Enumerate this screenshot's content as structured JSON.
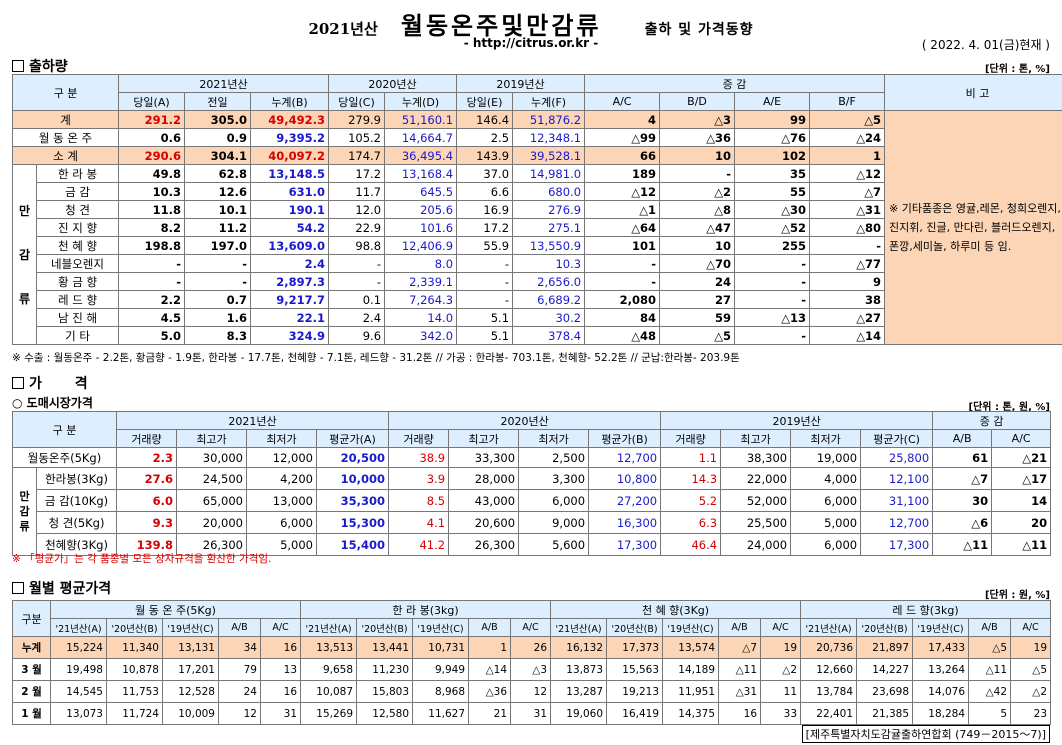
{
  "header": {
    "year": "2021년산",
    "title": "월동온주및만감류",
    "subtitle": "출하 및 가격동향",
    "url": "- http://citrus.or.kr -",
    "as_of": "( 2022. 4. 01(금)현재 )"
  },
  "shipment": {
    "section_title": "출하량",
    "unit": "[단위 : 톤, %]",
    "col_gubun": "구 분",
    "col_2021": "2021년산",
    "col_2020": "2020년산",
    "col_2019": "2019년산",
    "col_change": "증 감",
    "col_remark": "비 고",
    "sub_headers": [
      "당일(A)",
      "전일",
      "누계(B)",
      "당일(C)",
      "누계(D)",
      "당일(E)",
      "누계(F)",
      "A/C",
      "B/D",
      "A/E",
      "B/F"
    ],
    "rows": [
      {
        "label": "계",
        "cells": [
          "291.2",
          "305.0",
          "49,492.3",
          "279.9",
          "51,160.1",
          "146.4",
          "51,876.2",
          "4",
          "△3",
          "99",
          "△5"
        ]
      },
      {
        "label": "월 동 온 주",
        "cells": [
          "0.6",
          "0.9",
          "9,395.2",
          "105.2",
          "14,664.7",
          "2.5",
          "12,348.1",
          "△99",
          "△36",
          "△76",
          "△24"
        ]
      },
      {
        "label": "소 계",
        "cells": [
          "290.6",
          "304.1",
          "40,097.2",
          "174.7",
          "36,495.4",
          "143.9",
          "39,528.1",
          "66",
          "10",
          "102",
          "1"
        ]
      }
    ],
    "group_label": "만 감 류",
    "mangam_rows": [
      {
        "label": "한 라 봉",
        "cells": [
          "49.8",
          "62.8",
          "13,148.5",
          "17.2",
          "13,168.4",
          "37.0",
          "14,981.0",
          "189",
          "-",
          "35",
          "△12"
        ]
      },
      {
        "label": "금 감",
        "cells": [
          "10.3",
          "12.6",
          "631.0",
          "11.7",
          "645.5",
          "6.6",
          "680.0",
          "△12",
          "△2",
          "55",
          "△7"
        ]
      },
      {
        "label": "청 견",
        "cells": [
          "11.8",
          "10.1",
          "190.1",
          "12.0",
          "205.6",
          "16.9",
          "276.9",
          "△1",
          "△8",
          "△30",
          "△31"
        ]
      },
      {
        "label": "진 지 향",
        "cells": [
          "8.2",
          "11.2",
          "54.2",
          "22.9",
          "101.6",
          "17.2",
          "275.1",
          "△64",
          "△47",
          "△52",
          "△80"
        ]
      },
      {
        "label": "천 혜 향",
        "cells": [
          "198.8",
          "197.0",
          "13,609.0",
          "98.8",
          "12,406.9",
          "55.9",
          "13,550.9",
          "101",
          "10",
          "255",
          "-"
        ]
      },
      {
        "label": "네블오렌지",
        "cells": [
          "-",
          "-",
          "2.4",
          "-",
          "8.0",
          "-",
          "10.3",
          "-",
          "△70",
          "-",
          "△77"
        ]
      },
      {
        "label": "황 금 향",
        "cells": [
          "-",
          "-",
          "2,897.3",
          "-",
          "2,339.1",
          "-",
          "2,656.0",
          "-",
          "24",
          "-",
          "9"
        ]
      },
      {
        "label": "레 드 향",
        "cells": [
          "2.2",
          "0.7",
          "9,217.7",
          "0.1",
          "7,264.3",
          "-",
          "6,689.2",
          "2,080",
          "27",
          "-",
          "38"
        ]
      },
      {
        "label": "남 진 해",
        "cells": [
          "4.5",
          "1.6",
          "22.1",
          "2.4",
          "14.0",
          "5.1",
          "30.2",
          "84",
          "59",
          "△13",
          "△27"
        ]
      },
      {
        "label": "기 타",
        "cells": [
          "5.0",
          "8.3",
          "324.9",
          "9.6",
          "342.0",
          "5.1",
          "378.4",
          "△48",
          "△5",
          "-",
          "△14"
        ]
      }
    ],
    "remark": "※ 기타품종은 영귤,레몬, 청희오렌지, 진지휘, 진글, 만다린, 블러드오렌지, 폰깡,세미놀, 하루미 등 임.",
    "note": "※ 수출 : 월동온주 - 2.2톤, 황금향 - 1.9톤, 한라봉 - 17.7톤, 천혜향 - 7.1톤, 레드향 - 31.2톤 // 가공 : 한라봉- 703.1톤, 천혜향- 52.2톤 // 군납:한라봉- 203.9톤"
  },
  "price": {
    "section_title": "가 격",
    "sub_title": "○ 도매시장가격",
    "unit": "[단위 : 톤, 원, %]",
    "col_gubun": "구 분",
    "col_2021": "2021년산",
    "col_2020": "2020년산",
    "col_2019": "2019년산",
    "col_change": "증 감",
    "sub_headers": [
      "거래량",
      "최고가",
      "최저가",
      "평균가(A)",
      "거래량",
      "최고가",
      "최저가",
      "평균가(B)",
      "거래량",
      "최고가",
      "최저가",
      "평균가(C)",
      "A/B",
      "A/C"
    ],
    "first_row": {
      "label": "월동온주(5Kg)",
      "cells": [
        "2.3",
        "30,000",
        "12,000",
        "20,500",
        "38.9",
        "33,300",
        "2,500",
        "12,700",
        "1.1",
        "38,300",
        "19,000",
        "25,800",
        "61",
        "△21"
      ]
    },
    "group_label": "만 감 류",
    "rows": [
      {
        "label": "한라봉(3Kg)",
        "cells": [
          "27.6",
          "24,500",
          "4,200",
          "10,000",
          "3.9",
          "28,000",
          "3,300",
          "10,800",
          "14.3",
          "22,000",
          "4,000",
          "12,100",
          "△7",
          "△17"
        ]
      },
      {
        "label": "금 감(10Kg)",
        "cells": [
          "6.0",
          "65,000",
          "13,000",
          "35,300",
          "8.5",
          "43,000",
          "6,000",
          "27,200",
          "5.2",
          "52,000",
          "6,000",
          "31,100",
          "30",
          "14"
        ]
      },
      {
        "label": "청 견(5Kg)",
        "cells": [
          "9.3",
          "20,000",
          "6,000",
          "15,300",
          "4.1",
          "20,600",
          "9,000",
          "16,300",
          "6.3",
          "25,500",
          "5,000",
          "12,700",
          "△6",
          "20"
        ]
      },
      {
        "label": "천혜향(3Kg)",
        "cells": [
          "139.8",
          "26,300",
          "5,000",
          "15,400",
          "41.2",
          "26,300",
          "5,600",
          "17,300",
          "46.4",
          "24,000",
          "6,000",
          "17,300",
          "△11",
          "△11"
        ]
      }
    ],
    "note": "※ 「평균가」는 각 품종별 모든 상자규격을 환산한 가격임."
  },
  "monthly": {
    "section_title": "월별 평균가격",
    "unit": "[단위 : 원, %]",
    "col_gubun": "구분",
    "groups": [
      "월 동 온 주(5Kg)",
      "한 라 봉(3kg)",
      "천 혜 향(3Kg)",
      "레 드 향(3kg)"
    ],
    "sub_headers": [
      "'21년산(A)",
      "'20년산(B)",
      "'19년산(C)",
      "A/B",
      "A/C"
    ],
    "rows": [
      {
        "label": "누계",
        "cells": [
          "15,224",
          "11,340",
          "13,131",
          "34",
          "16",
          "13,513",
          "13,441",
          "10,731",
          "1",
          "26",
          "16,132",
          "17,373",
          "13,574",
          "△7",
          "19",
          "20,736",
          "21,897",
          "17,433",
          "△5",
          "19"
        ]
      },
      {
        "label": "3 월",
        "cells": [
          "19,498",
          "10,878",
          "17,201",
          "79",
          "13",
          "9,658",
          "11,230",
          "9,949",
          "△14",
          "△3",
          "13,873",
          "15,563",
          "14,189",
          "△11",
          "△2",
          "12,660",
          "14,227",
          "13,264",
          "△11",
          "△5"
        ]
      },
      {
        "label": "2 월",
        "cells": [
          "14,545",
          "11,753",
          "12,528",
          "24",
          "16",
          "10,087",
          "15,803",
          "8,968",
          "△36",
          "12",
          "13,287",
          "19,213",
          "11,951",
          "△31",
          "11",
          "13,784",
          "23,698",
          "14,076",
          "△42",
          "△2"
        ]
      },
      {
        "label": "1 월",
        "cells": [
          "13,073",
          "11,724",
          "10,009",
          "12",
          "31",
          "15,269",
          "12,580",
          "11,627",
          "21",
          "31",
          "19,060",
          "16,419",
          "14,375",
          "16",
          "33",
          "22,401",
          "21,385",
          "18,284",
          "5",
          "23"
        ]
      }
    ]
  },
  "footer": "[제주특별자치도감귤출하연합회 (749－2015～7)]"
}
